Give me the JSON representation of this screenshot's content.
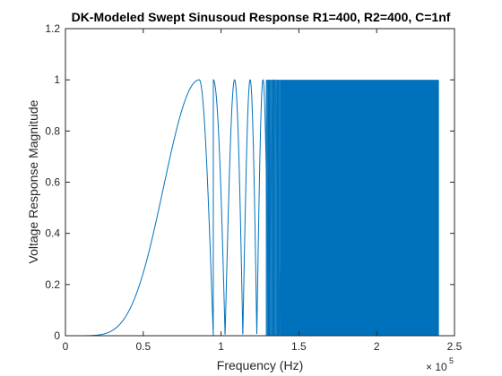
{
  "chart_data": {
    "type": "line",
    "title": "DK-Modeled Swept Sinusoud Response R1=400, R2=400, C=1nf",
    "xlabel": "Frequency (Hz)",
    "ylabel": "Voltage Response Magnitude",
    "x_exponent_base": "× 10",
    "x_exponent_power": "5",
    "xlim": [
      0,
      250000
    ],
    "ylim": [
      0,
      1.2
    ],
    "x_ticks": [
      0,
      50000,
      100000,
      150000,
      200000,
      250000
    ],
    "x_tick_labels": [
      "0",
      "0.5",
      "1",
      "1.5",
      "2",
      "2.5"
    ],
    "y_ticks": [
      0,
      0.2,
      0.4,
      0.6,
      0.8,
      1.0,
      1.2
    ],
    "y_tick_labels": [
      "0",
      "0.2",
      "0.4",
      "0.6",
      "0.8",
      "1",
      "1.2"
    ],
    "grid": false,
    "line_color": "#0072BD",
    "series": [
      {
        "x_start": 0,
        "x_end": 240000,
        "envelope_min": 0,
        "envelope_max": 1.0,
        "first_peak_x": 86000,
        "first_zero_x": 95000,
        "dense_fill_start_x": 138000
      }
    ]
  }
}
